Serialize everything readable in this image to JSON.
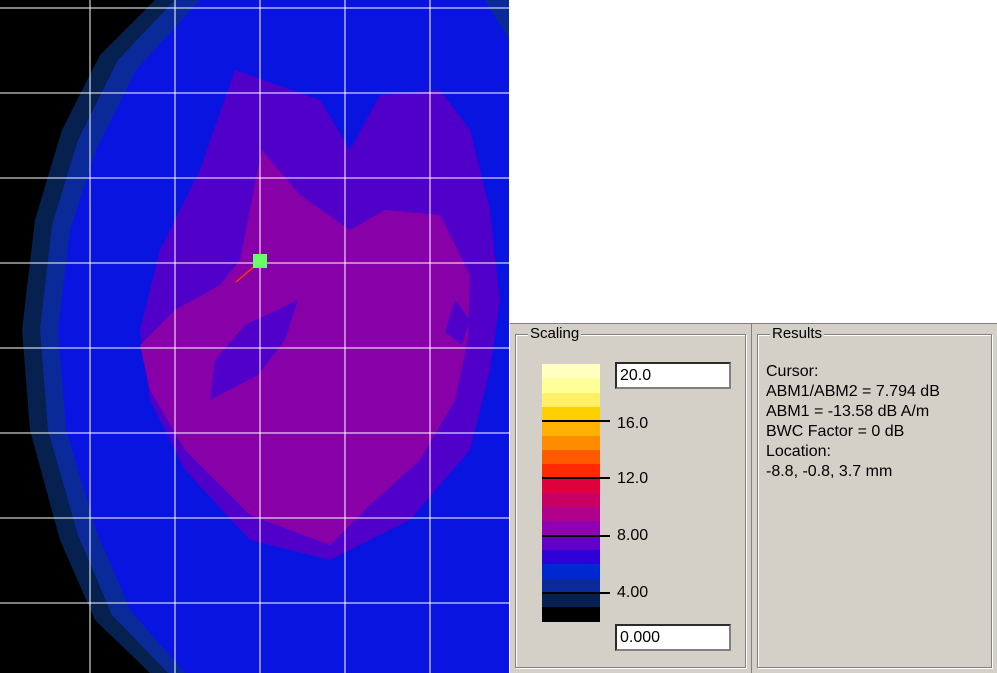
{
  "heatmap": {
    "grid_color": "#ffffff",
    "cursor_color": "#66ff66",
    "cursor_tail_color": "#ff3300"
  },
  "scaling": {
    "title": "Scaling",
    "max_value": "20.0",
    "min_value": "0.000",
    "tick_labels": [
      "16.0",
      "12.0",
      "8.00",
      "4.00"
    ],
    "colors": [
      "#ffffc0",
      "#ffff99",
      "#fff066",
      "#ffd000",
      "#ffb000",
      "#ff8c00",
      "#ff5a00",
      "#ff2a00",
      "#e0003c",
      "#c80064",
      "#b0008c",
      "#9000b0",
      "#6000c8",
      "#3000d8",
      "#0028d0",
      "#0a2a9a",
      "#062050",
      "#000000"
    ]
  },
  "results": {
    "title": "Results",
    "lines": [
      "Cursor:",
      "ABM1/ABM2 = 7.794 dB",
      "ABM1 = -13.58 dB A/m",
      "BWC Factor = 0 dB",
      "Location:",
      "-8.8, -0.8, 3.7 mm"
    ]
  }
}
